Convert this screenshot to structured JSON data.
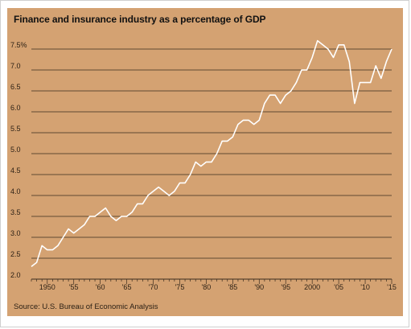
{
  "title": "Finance and insurance industry as a percentage of GDP",
  "source": "Source: U.S. Bureau of Economic Analysis",
  "colors": {
    "background": "#d4a272",
    "line": "#ffffff",
    "grid": "#3a2c1e",
    "text": "#2a1f14"
  },
  "chart_data": {
    "type": "line",
    "title": "Finance and insurance industry as a percentage of GDP",
    "xlabel": "",
    "ylabel": "",
    "xlim": [
      1947,
      2015
    ],
    "ylim": [
      2.0,
      7.5
    ],
    "grid": true,
    "yticks": [
      {
        "value": 7.5,
        "label": "7.5%"
      },
      {
        "value": 7.0,
        "label": "7.0"
      },
      {
        "value": 6.5,
        "label": "6.5"
      },
      {
        "value": 6.0,
        "label": "6.0"
      },
      {
        "value": 5.5,
        "label": "5.5"
      },
      {
        "value": 5.0,
        "label": "5.0"
      },
      {
        "value": 4.5,
        "label": "4.5"
      },
      {
        "value": 4.0,
        "label": "4.0"
      },
      {
        "value": 3.5,
        "label": "3.5"
      },
      {
        "value": 3.0,
        "label": "3.0"
      },
      {
        "value": 2.5,
        "label": "2.5"
      },
      {
        "value": 2.0,
        "label": "2.0"
      }
    ],
    "xticks": [
      {
        "value": 1950,
        "label": "1950"
      },
      {
        "value": 1955,
        "label": "'55"
      },
      {
        "value": 1960,
        "label": "'60"
      },
      {
        "value": 1965,
        "label": "'65"
      },
      {
        "value": 1970,
        "label": "'70"
      },
      {
        "value": 1975,
        "label": "'75"
      },
      {
        "value": 1980,
        "label": "'80"
      },
      {
        "value": 1985,
        "label": "'85"
      },
      {
        "value": 1990,
        "label": "'90"
      },
      {
        "value": 1995,
        "label": "'95"
      },
      {
        "value": 2000,
        "label": "2000"
      },
      {
        "value": 2005,
        "label": "'05"
      },
      {
        "value": 2010,
        "label": "'10"
      },
      {
        "value": 2015,
        "label": "'15"
      }
    ],
    "series": [
      {
        "x": [
          1947,
          1948,
          1949,
          1950,
          1951,
          1952,
          1953,
          1954,
          1955,
          1956,
          1957,
          1958,
          1959,
          1960,
          1961,
          1962,
          1963,
          1964,
          1965,
          1966,
          1967,
          1968,
          1969,
          1970,
          1971,
          1972,
          1973,
          1974,
          1975,
          1976,
          1977,
          1978,
          1979,
          1980,
          1981,
          1982,
          1983,
          1984,
          1985,
          1986,
          1987,
          1988,
          1989,
          1990,
          1991,
          1992,
          1993,
          1994,
          1995,
          1996,
          1997,
          1998,
          1999,
          2000,
          2001,
          2002,
          2003,
          2004,
          2005,
          2006,
          2007,
          2008,
          2009,
          2010,
          2011,
          2012,
          2013,
          2014,
          2015
        ],
        "y": [
          2.3,
          2.4,
          2.8,
          2.7,
          2.7,
          2.8,
          3.0,
          3.2,
          3.1,
          3.2,
          3.3,
          3.5,
          3.5,
          3.6,
          3.7,
          3.5,
          3.4,
          3.5,
          3.5,
          3.6,
          3.8,
          3.8,
          4.0,
          4.1,
          4.2,
          4.1,
          4.0,
          4.1,
          4.3,
          4.3,
          4.5,
          4.8,
          4.7,
          4.8,
          4.8,
          5.0,
          5.3,
          5.3,
          5.4,
          5.7,
          5.8,
          5.8,
          5.7,
          5.8,
          6.2,
          6.4,
          6.4,
          6.2,
          6.4,
          6.5,
          6.7,
          7.0,
          7.0,
          7.3,
          7.7,
          7.6,
          7.5,
          7.3,
          7.6,
          7.6,
          7.2,
          6.2,
          6.7,
          6.7,
          6.7,
          7.1,
          6.8,
          7.2,
          7.5
        ]
      }
    ]
  }
}
